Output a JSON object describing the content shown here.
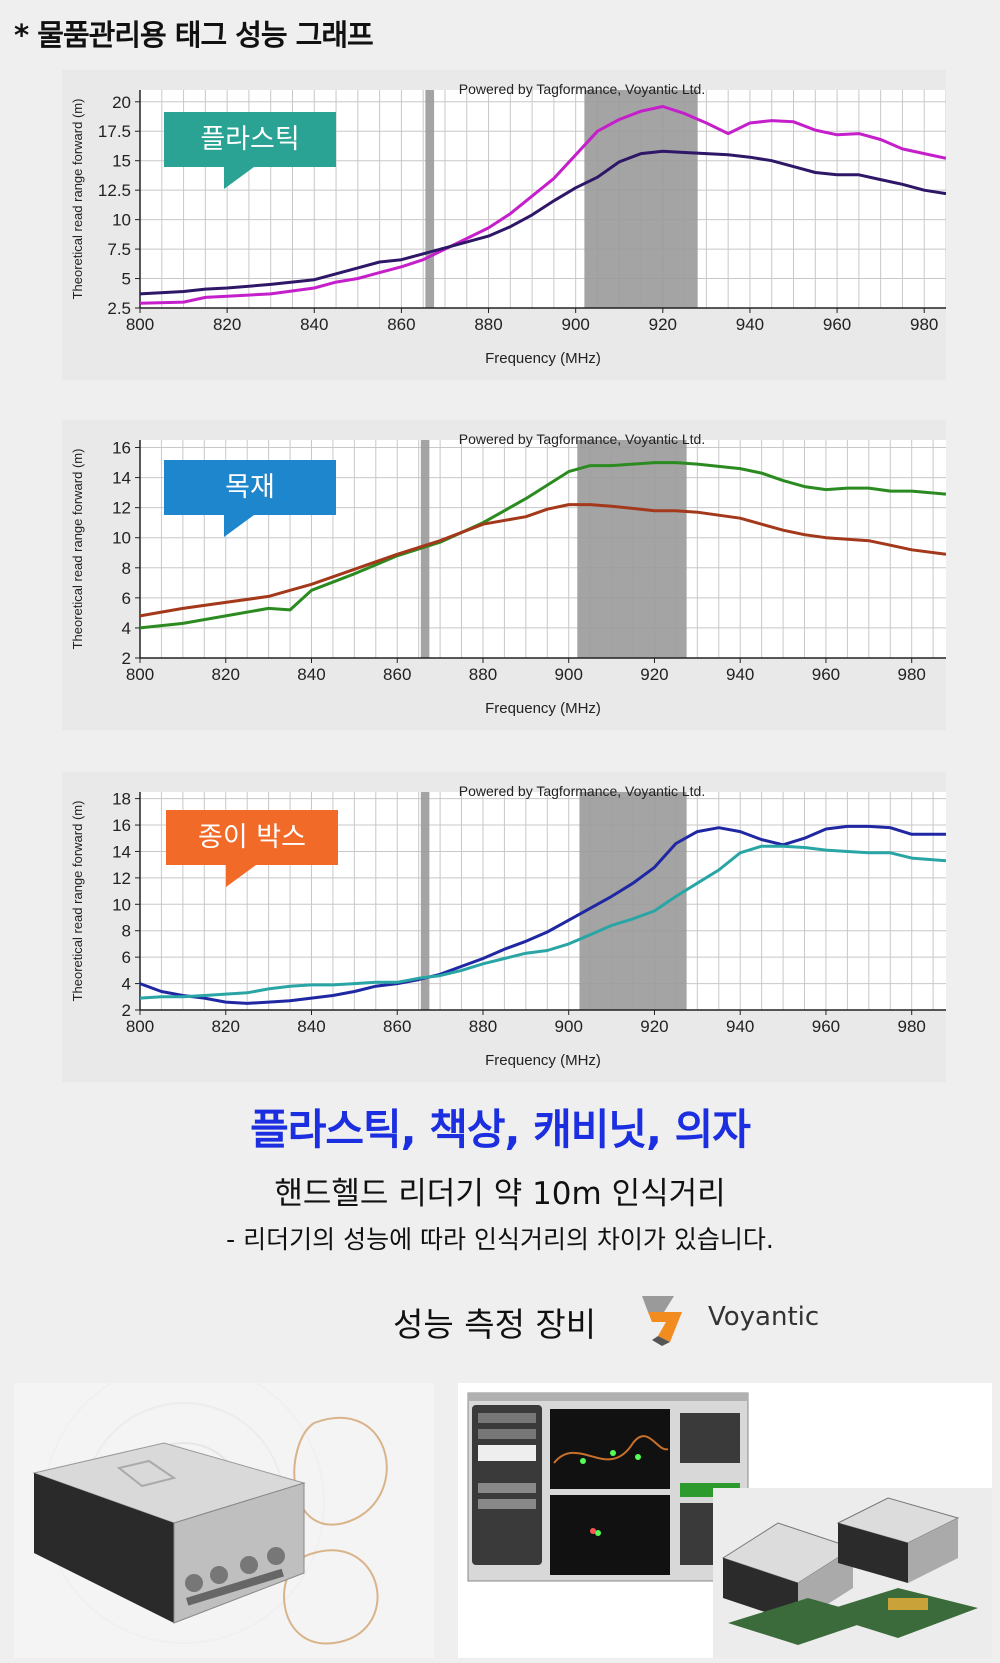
{
  "page": {
    "title": "* 물품관리용 태그 성능 그래프",
    "headline": "플라스틱, 책상, 캐비닛, 의자",
    "subline": "핸드헬드 리더기 약 10m 인식거리",
    "note": "- 리더기의 성능에 따라 인식거리의 차이가 있습니다.",
    "equipment_label": "성능 측정 장비",
    "brand": "Voyantic"
  },
  "colors": {
    "plastic_badge": "#2aa394",
    "wood_badge": "#1d86cc",
    "box_badge": "#f26a28",
    "headline": "#1b2fe0"
  },
  "chart_data": [
    {
      "type": "line",
      "badge": "플라스틱",
      "watermark": "Powered by Tagformance, Voyantic Ltd.",
      "xlabel": "Frequency (MHz)",
      "ylabel": "Theoretical read range forward (m)",
      "xlim": [
        800,
        985
      ],
      "ylim": [
        2.5,
        21
      ],
      "xticks": [
        800,
        820,
        840,
        860,
        880,
        900,
        920,
        940,
        960,
        980
      ],
      "yticks": [
        2.5,
        5,
        7.5,
        10,
        12.5,
        15,
        17.5,
        20
      ],
      "bands": [
        [
          865.5,
          867.5
        ],
        [
          902,
          928
        ]
      ],
      "x": [
        800,
        810,
        815,
        820,
        830,
        840,
        845,
        850,
        855,
        860,
        865,
        870,
        880,
        885,
        890,
        895,
        900,
        905,
        910,
        915,
        920,
        925,
        930,
        935,
        940,
        945,
        950,
        955,
        960,
        965,
        970,
        975,
        980,
        985
      ],
      "series": [
        {
          "color": "#c51ecb",
          "values": [
            2.9,
            3.0,
            3.4,
            3.5,
            3.7,
            4.2,
            4.7,
            5.0,
            5.5,
            6.0,
            6.6,
            7.5,
            9.3,
            10.5,
            12.0,
            13.5,
            15.5,
            17.5,
            18.5,
            19.2,
            19.6,
            19.0,
            18.2,
            17.3,
            18.2,
            18.4,
            18.3,
            17.6,
            17.2,
            17.3,
            16.8,
            16.0,
            15.6,
            15.2
          ]
        },
        {
          "color": "#2d1766",
          "values": [
            3.7,
            3.9,
            4.1,
            4.2,
            4.5,
            4.9,
            5.4,
            5.9,
            6.4,
            6.6,
            7.1,
            7.6,
            8.6,
            9.4,
            10.4,
            11.6,
            12.7,
            13.6,
            14.9,
            15.6,
            15.8,
            15.7,
            15.6,
            15.5,
            15.3,
            15.0,
            14.5,
            14.0,
            13.8,
            13.8,
            13.4,
            13.0,
            12.5,
            12.2
          ]
        }
      ]
    },
    {
      "type": "line",
      "badge": "목재",
      "watermark": "Powered by Tagformance, Voyantic Ltd.",
      "xlabel": "Frequency (MHz)",
      "ylabel": "Theoretical read range forward (m)",
      "xlim": [
        800,
        988
      ],
      "ylim": [
        2,
        16.5
      ],
      "xticks": [
        800,
        820,
        840,
        860,
        880,
        900,
        920,
        940,
        960,
        980
      ],
      "yticks": [
        2,
        4,
        6,
        8,
        10,
        12,
        14,
        16
      ],
      "bands": [
        [
          865.5,
          867.5
        ],
        [
          902,
          927.5
        ]
      ],
      "x": [
        800,
        810,
        820,
        830,
        835,
        840,
        850,
        860,
        870,
        880,
        890,
        895,
        900,
        905,
        910,
        920,
        925,
        930,
        940,
        945,
        950,
        955,
        960,
        965,
        970,
        975,
        980,
        988
      ],
      "series": [
        {
          "color": "#2b8b20",
          "values": [
            4.0,
            4.3,
            4.8,
            5.3,
            5.2,
            6.5,
            7.6,
            8.8,
            9.7,
            11.0,
            12.6,
            13.5,
            14.4,
            14.8,
            14.8,
            15.0,
            15.0,
            14.9,
            14.6,
            14.3,
            13.8,
            13.4,
            13.2,
            13.3,
            13.3,
            13.1,
            13.1,
            12.9
          ]
        },
        {
          "color": "#a3381b",
          "values": [
            4.8,
            5.3,
            5.7,
            6.1,
            6.5,
            6.9,
            7.9,
            8.9,
            9.8,
            10.9,
            11.4,
            11.9,
            12.2,
            12.2,
            12.1,
            11.8,
            11.8,
            11.7,
            11.3,
            10.9,
            10.5,
            10.2,
            10.0,
            9.9,
            9.8,
            9.5,
            9.2,
            8.9
          ]
        }
      ]
    },
    {
      "type": "line",
      "badge": "종이 박스",
      "watermark": "Powered by Tagformance, Voyantic Ltd.",
      "xlabel": "Frequency (MHz)",
      "ylabel": "Theoretical read range forward (m)",
      "xlim": [
        800,
        988
      ],
      "ylim": [
        2,
        18.5
      ],
      "xticks": [
        800,
        820,
        840,
        860,
        880,
        900,
        920,
        940,
        960,
        980
      ],
      "yticks": [
        2,
        4,
        6,
        8,
        10,
        12,
        14,
        16,
        18
      ],
      "bands": [
        [
          865.5,
          867.5
        ],
        [
          902.5,
          927.5
        ]
      ],
      "x": [
        800,
        805,
        810,
        815,
        820,
        825,
        830,
        835,
        840,
        845,
        850,
        855,
        860,
        865,
        870,
        875,
        880,
        885,
        890,
        895,
        900,
        905,
        910,
        915,
        920,
        925,
        930,
        935,
        940,
        945,
        950,
        955,
        960,
        965,
        970,
        975,
        980,
        988
      ],
      "series": [
        {
          "color": "#1f28a2",
          "values": [
            4.0,
            3.4,
            3.1,
            2.9,
            2.6,
            2.5,
            2.6,
            2.7,
            2.9,
            3.1,
            3.4,
            3.8,
            4.0,
            4.3,
            4.7,
            5.3,
            5.9,
            6.6,
            7.2,
            7.9,
            8.8,
            9.7,
            10.6,
            11.6,
            12.8,
            14.6,
            15.5,
            15.8,
            15.5,
            14.9,
            14.5,
            15.0,
            15.7,
            15.9,
            15.9,
            15.8,
            15.3,
            15.3
          ]
        },
        {
          "color": "#2aa5a5",
          "values": [
            2.9,
            3.0,
            3.0,
            3.1,
            3.2,
            3.3,
            3.6,
            3.8,
            3.9,
            3.9,
            4.0,
            4.1,
            4.1,
            4.4,
            4.6,
            5.0,
            5.5,
            5.9,
            6.3,
            6.5,
            7.0,
            7.7,
            8.4,
            8.9,
            9.5,
            10.6,
            11.6,
            12.6,
            13.9,
            14.4,
            14.4,
            14.3,
            14.1,
            14.0,
            13.9,
            13.9,
            13.5,
            13.3
          ]
        }
      ]
    }
  ]
}
